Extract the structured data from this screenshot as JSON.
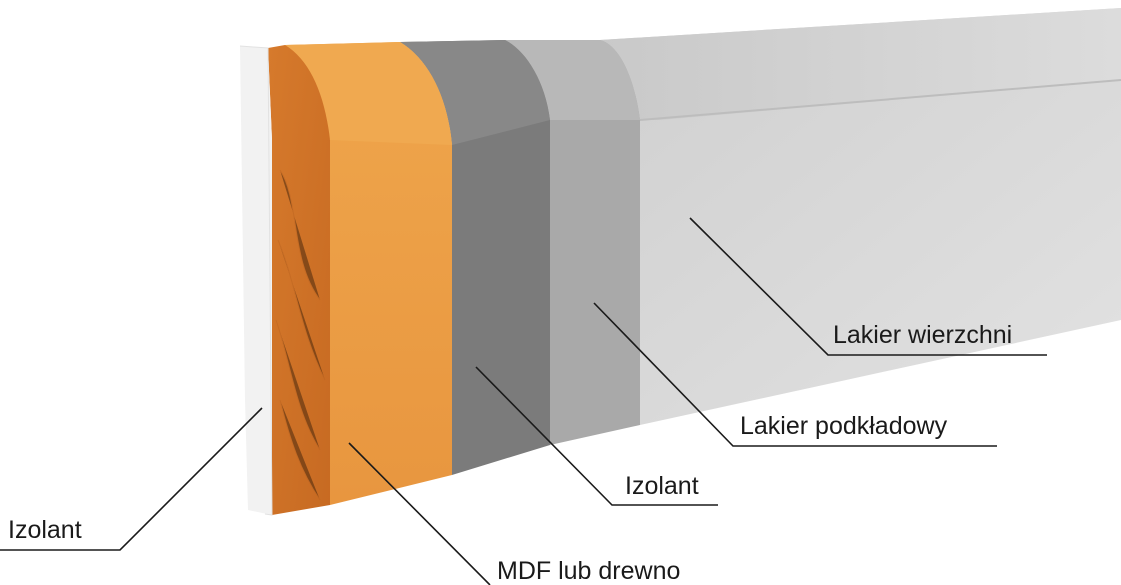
{
  "labels": {
    "lakier_wierzchni": "Lakier wierzchni",
    "lakier_podkladowy": "Lakier podkładowy",
    "izolant_inner": "Izolant",
    "izolant_outer": "Izolant",
    "mdf": "MDF lub drewno"
  },
  "colors": {
    "wood": "#e3903f",
    "wood_front": "#eca048",
    "izolant_grey": "#7b7b7b",
    "primer_grey": "#a9a9a9",
    "topcoat": "#d6d6d6",
    "outer_izolant": "#f2f2f2"
  }
}
